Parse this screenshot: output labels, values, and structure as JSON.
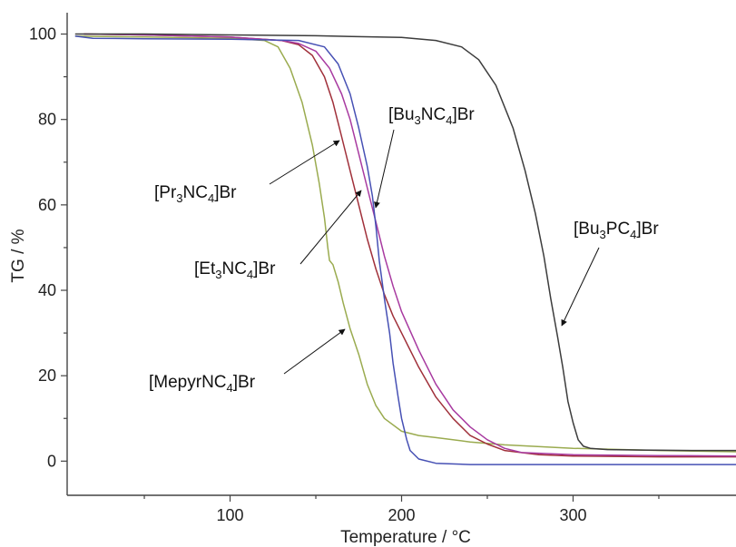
{
  "chart_data": {
    "type": "line",
    "title": "",
    "xlabel": "Temperature / °C",
    "ylabel": "TG / %",
    "xlim": [
      5,
      395
    ],
    "ylim": [
      -8,
      105
    ],
    "xticks": [
      100,
      200,
      300
    ],
    "yticks": [
      0,
      20,
      40,
      60,
      80,
      100
    ],
    "grid": false,
    "legend": "none",
    "series": [
      {
        "key": "mepyr",
        "color": "#9aab4f",
        "x": [
          10,
          50,
          100,
          120,
          128,
          135,
          142,
          148,
          152,
          155,
          157,
          158,
          160,
          163,
          166,
          170,
          175,
          180,
          185,
          190,
          200,
          210,
          220,
          240,
          260,
          300,
          350,
          395
        ],
        "y": [
          99.5,
          99.3,
          99,
          98.5,
          97,
          92,
          84,
          74,
          65,
          57,
          50,
          47,
          46,
          42,
          37,
          31,
          25,
          18,
          13,
          10,
          7,
          6,
          5.5,
          4.5,
          3.8,
          3,
          2.5,
          2.2
        ]
      },
      {
        "key": "pr3",
        "color": "#a0303a",
        "x": [
          15,
          50,
          100,
          130,
          140,
          148,
          155,
          160,
          165,
          170,
          175,
          180,
          185,
          190,
          195,
          200,
          210,
          220,
          230,
          240,
          250,
          260,
          280,
          300,
          350,
          395
        ],
        "y": [
          100,
          99.8,
          99.3,
          98.5,
          97.5,
          95,
          90,
          84,
          76,
          68,
          60,
          52,
          45,
          39,
          34,
          30,
          22,
          15,
          10,
          6,
          4,
          2.5,
          1.5,
          1.2,
          1,
          1
        ]
      },
      {
        "key": "et3",
        "color": "#a83aa0",
        "x": [
          15,
          50,
          100,
          130,
          140,
          150,
          158,
          165,
          170,
          175,
          180,
          185,
          190,
          195,
          200,
          210,
          220,
          230,
          240,
          250,
          260,
          270,
          300,
          350,
          395
        ],
        "y": [
          100,
          99.8,
          99.3,
          98.5,
          97.8,
          96,
          92,
          86,
          80,
          72,
          64,
          56,
          48,
          41,
          35,
          26,
          18,
          12,
          8,
          5,
          3,
          2,
          1.5,
          1.3,
          1.2
        ]
      },
      {
        "key": "bu3n",
        "color": "#4650b4",
        "x": [
          10,
          20,
          50,
          100,
          140,
          155,
          163,
          170,
          175,
          180,
          183,
          185,
          187,
          190,
          193,
          195,
          198,
          200,
          203,
          205,
          210,
          220,
          240,
          260,
          300,
          350,
          395
        ],
        "y": [
          99.5,
          99,
          98.9,
          98.8,
          98.5,
          97,
          93,
          86,
          78,
          69,
          62,
          55,
          47,
          38,
          30,
          23,
          15,
          10,
          5,
          2.5,
          0.5,
          -0.5,
          -0.8,
          -0.8,
          -0.8,
          -0.8,
          -0.8
        ]
      },
      {
        "key": "bu3p",
        "color": "#3c3c3c",
        "x": [
          10,
          50,
          100,
          150,
          200,
          220,
          235,
          245,
          255,
          265,
          272,
          278,
          283,
          287,
          291,
          294,
          297,
          300,
          303,
          306,
          310,
          320,
          340,
          370,
          395
        ],
        "y": [
          100,
          100,
          99.8,
          99.6,
          99.2,
          98.5,
          97,
          94,
          88,
          78,
          68,
          58,
          48,
          38,
          29,
          22,
          14,
          9,
          5,
          3.5,
          3,
          2.7,
          2.6,
          2.5,
          2.5
        ]
      }
    ],
    "annotations": [
      {
        "key": "pr3",
        "prefix": "[Pr",
        "sub1": "3",
        "middle": "NC",
        "sub2": "4",
        "suffix": "]Br"
      },
      {
        "key": "bu3n",
        "prefix": "[Bu",
        "sub1": "3",
        "middle": "NC",
        "sub2": "4",
        "suffix": "]Br"
      },
      {
        "key": "et3",
        "prefix": "[Et",
        "sub1": "3",
        "middle": "NC",
        "sub2": "4",
        "suffix": "]Br"
      },
      {
        "key": "bu3p",
        "prefix": "[Bu",
        "sub1": "3",
        "middle": "PC",
        "sub2": "4",
        "suffix": "]Br"
      },
      {
        "key": "mepyr",
        "prefix": "[MepyrNC",
        "sub1": "4",
        "middle": "",
        "sub2": "",
        "suffix": "]Br"
      }
    ]
  }
}
